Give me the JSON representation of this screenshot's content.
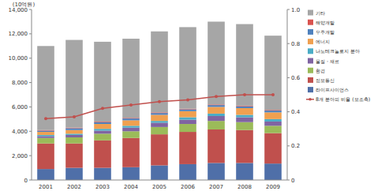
{
  "chart_data": {
    "type": "bar",
    "stacked": true,
    "y_label": "(10억원)",
    "categories": [
      "2001",
      "2002",
      "2003",
      "2004",
      "2005",
      "2006",
      "2007",
      "2008",
      "2009"
    ],
    "ylim": [
      0,
      14000
    ],
    "yticks": [
      0,
      {
        "value": 2000,
        "label": "2,000"
      },
      {
        "value": 4000,
        "label": "4,000"
      },
      {
        "value": 6000,
        "label": "6,000"
      },
      {
        "value": 8000,
        "label": "8,000"
      },
      {
        "value": 10000,
        "label": "10,000"
      },
      {
        "value": 12000,
        "label": "12,000"
      },
      {
        "value": 14000,
        "label": "14,000"
      }
    ],
    "y2lim": [
      0,
      1
    ],
    "y2ticks": [
      0,
      0.2,
      0.4,
      0.6,
      0.8,
      {
        "value": 1,
        "label": "1.0"
      }
    ],
    "legend": "right",
    "series": [
      {
        "name": "라이프사이언스",
        "color": "#4f6fa8",
        "values": [
          900,
          1000,
          1000,
          1050,
          1200,
          1300,
          1400,
          1400,
          1350
        ]
      },
      {
        "name": "정보통신",
        "color": "#c0504d",
        "values": [
          2100,
          2000,
          2250,
          2400,
          2550,
          2650,
          2750,
          2700,
          2500
        ]
      },
      {
        "name": "환경",
        "color": "#9bbb59",
        "values": [
          450,
          500,
          550,
          550,
          600,
          650,
          700,
          650,
          600
        ]
      },
      {
        "name": "물질・재료",
        "color": "#8064a2",
        "values": [
          150,
          200,
          250,
          300,
          350,
          350,
          400,
          400,
          350
        ]
      },
      {
        "name": "나노테크놀로지 분야",
        "color": "#4bacc6",
        "values": [
          100,
          100,
          150,
          150,
          150,
          200,
          200,
          200,
          200
        ]
      },
      {
        "name": "에너지",
        "color": "#f0a050",
        "values": [
          250,
          300,
          400,
          450,
          500,
          500,
          550,
          550,
          550
        ]
      },
      {
        "name": "우주개발",
        "color": "#4f81bd",
        "values": [
          100,
          150,
          150,
          150,
          150,
          150,
          150,
          150,
          150
        ]
      },
      {
        "name": "해양개발",
        "color": "#d9534f",
        "values": [
          50,
          50,
          50,
          50,
          50,
          50,
          50,
          50,
          50
        ]
      },
      {
        "name": "기타",
        "color": "#a6a6a6",
        "values": [
          6900,
          7200,
          6550,
          6500,
          6650,
          6700,
          6800,
          6700,
          6100
        ]
      },
      {
        "name": "8개 분야의 비율 (보조축)",
        "type": "line",
        "axis": "y2",
        "color": "#c0504d",
        "marker": "circle",
        "values": [
          0.36,
          0.37,
          0.42,
          0.44,
          0.46,
          0.47,
          0.49,
          0.5,
          0.5
        ]
      }
    ]
  }
}
